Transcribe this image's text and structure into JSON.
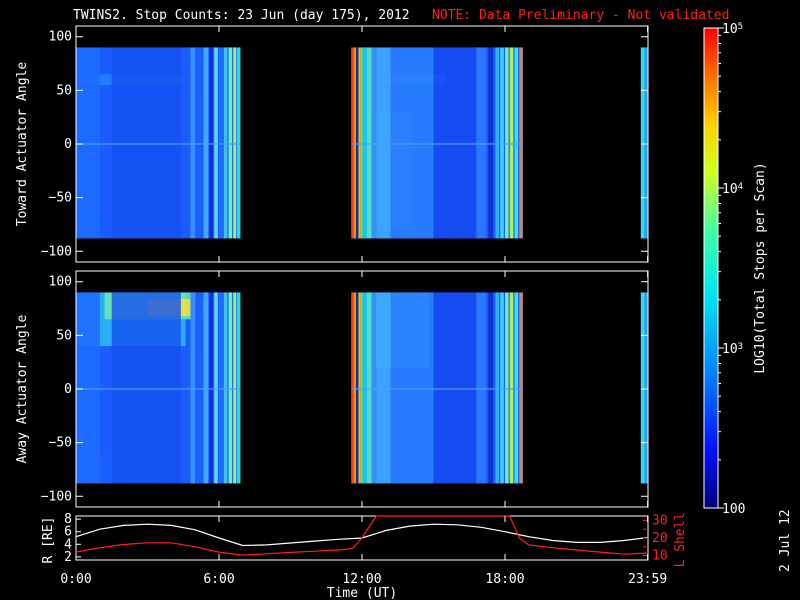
{
  "title": "TWINS2. Stop Counts: 23 Jun (day 175), 2012",
  "note": "NOTE: Data Preliminary - Not validated",
  "date_stamp": "2 Jul 12",
  "colors": {
    "note": "#ff2020",
    "r_line": "#ffffff",
    "lshell_line": "#ff2020"
  },
  "chart_data": [
    {
      "type": "heatmap",
      "id": "toward",
      "ylabel": "Toward Actuator Angle",
      "ylim": [
        -110,
        110
      ],
      "yticks": [
        100,
        50,
        0,
        -50,
        -100
      ],
      "ytick_labels": [
        "100",
        "50",
        "0",
        "−50",
        "−100"
      ],
      "angle_range": [
        -88,
        90
      ],
      "xlim": [
        0,
        24
      ],
      "data_intervals_hours": [
        [
          0,
          6.9
        ],
        [
          11.55,
          18.75
        ],
        [
          23.7,
          24
        ]
      ],
      "note": "values are LOG10(Total Stops per Scan)"
    },
    {
      "type": "heatmap",
      "id": "away",
      "ylabel": "Away Actuator Angle",
      "ylim": [
        -110,
        110
      ],
      "yticks": [
        100,
        50,
        0,
        -50,
        -100
      ],
      "ytick_labels": [
        "100",
        "50",
        "0",
        "−50",
        "−100"
      ],
      "angle_range": [
        -88,
        90
      ],
      "xlim": [
        0,
        24
      ],
      "data_intervals_hours": [
        [
          0,
          6.9
        ],
        [
          11.55,
          18.75
        ],
        [
          23.7,
          24
        ]
      ]
    },
    {
      "type": "line",
      "id": "orbit",
      "ylabel_left": "R [RE]",
      "ylabel_right": "L Shell",
      "ylim_left": [
        1.5,
        8.5
      ],
      "ylim_right": [
        7.5,
        32.5
      ],
      "left_ticks": [
        "8",
        "6",
        "4",
        "2"
      ],
      "right_ticks": [
        "30",
        "20",
        "10"
      ],
      "left_tick_values": [
        8,
        6,
        4,
        2
      ],
      "right_tick_values": [
        30,
        25,
        20,
        15,
        10
      ],
      "xlim": [
        0,
        24
      ],
      "xlabel": "Time (UT)",
      "xticks": [
        0,
        6,
        12,
        18,
        23.983
      ],
      "xtick_labels": [
        "0:00",
        "6:00",
        "12:00",
        "18:00",
        "23:59"
      ],
      "series": [
        {
          "name": "R [RE]",
          "color": "#ffffff",
          "x": [
            0,
            1,
            2,
            3,
            4,
            5,
            6,
            7,
            8,
            9,
            10,
            11,
            12,
            13,
            14,
            15,
            16,
            17,
            18,
            19,
            20,
            21,
            22,
            23,
            24
          ],
          "y": [
            5.2,
            6.4,
            7.0,
            7.2,
            7.0,
            6.3,
            5.0,
            3.8,
            3.9,
            4.2,
            4.5,
            4.8,
            5.0,
            6.2,
            6.9,
            7.2,
            7.1,
            6.7,
            6.0,
            5.2,
            4.6,
            4.3,
            4.3,
            4.6,
            5.1
          ]
        },
        {
          "name": "L Shell",
          "color": "#ff2020",
          "x": [
            0,
            1,
            2,
            3,
            4,
            5,
            6,
            7,
            8,
            9,
            10,
            11,
            11.6,
            12,
            12.6,
            18.2,
            18.6,
            19,
            20,
            21,
            22,
            23,
            24
          ],
          "y": [
            12.0,
            14.5,
            16.3,
            17.3,
            17.3,
            15.0,
            12.0,
            10.3,
            11.0,
            11.8,
            12.5,
            13.2,
            14.0,
            20.0,
            33.0,
            33.0,
            20.0,
            16.0,
            14.5,
            13.2,
            12.0,
            10.8,
            11.5
          ]
        }
      ]
    },
    {
      "type": "colorbar",
      "id": "colorbar",
      "label": "LOG10(Total Stops per Scan)",
      "range": [
        100,
        100000
      ],
      "tick_labels": [
        "10^5",
        "10^4",
        "10^3",
        "100"
      ],
      "tick_values": [
        100000,
        10000,
        1000,
        100
      ]
    }
  ]
}
